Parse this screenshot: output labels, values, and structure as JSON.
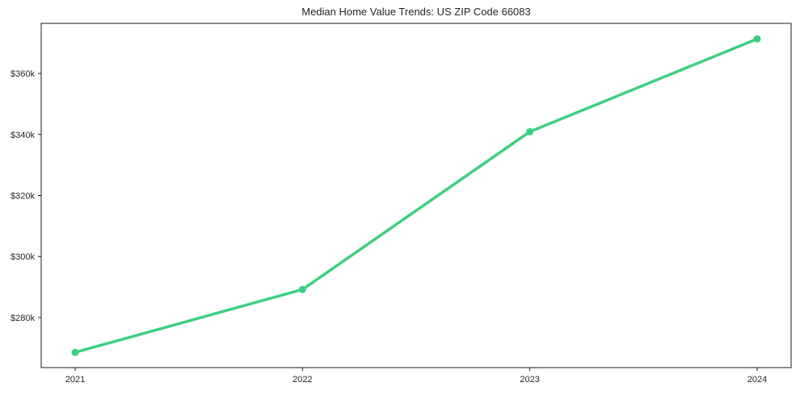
{
  "chart_data": {
    "type": "line",
    "title": "Median Home Value Trends: US ZIP Code 66083",
    "x": [
      "2021",
      "2022",
      "2023",
      "2024"
    ],
    "series": [
      {
        "name": "Median Home Value",
        "values": [
          268.6,
          289.2,
          340.9,
          371.3
        ]
      }
    ],
    "unit": "USD thousands",
    "xlabel": "",
    "ylabel": "",
    "ylim": [
      263.6,
      376.4
    ],
    "yticks": {
      "values": [
        280,
        300,
        320,
        340,
        360
      ],
      "labels": [
        "$280k",
        "$300k",
        "$320k",
        "$340k",
        "$360k"
      ]
    },
    "grid": false,
    "legend": "none",
    "line_color": "#3dcf82",
    "marker": "circle",
    "axis_color": "#1a1a1a",
    "text_color": "#262626"
  }
}
